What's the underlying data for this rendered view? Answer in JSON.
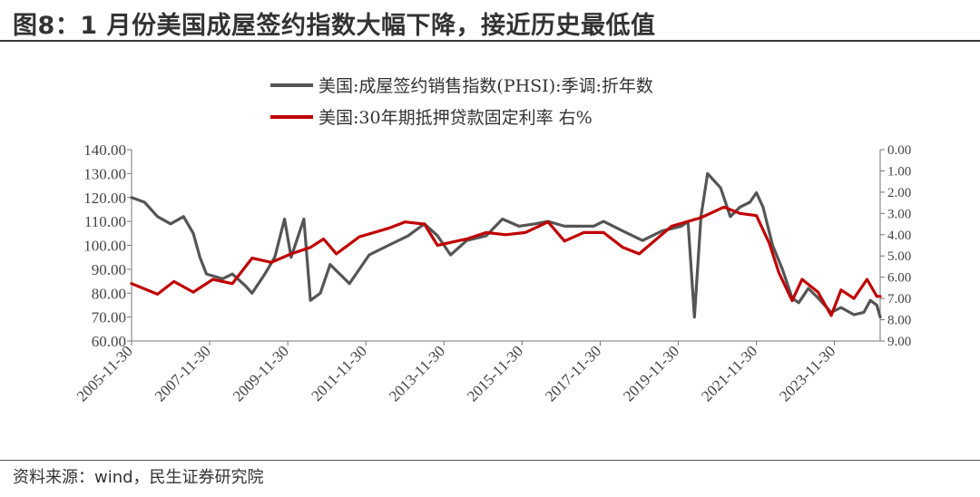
{
  "title": "图8：1 月份美国成屋签约指数大幅下降，接近历史最低值",
  "source": "资料来源：wind，民生证券研究院",
  "chart_data": {
    "type": "line",
    "legend_placement": "top-center",
    "grid": false,
    "x_axis": {
      "range": [
        "2005-11-30",
        "2025-01-31"
      ],
      "tick_labels": [
        "2005-11-30",
        "2007-11-30",
        "2009-11-30",
        "2011-11-30",
        "2013-11-30",
        "2015-11-30",
        "2017-11-30",
        "2019-11-30",
        "2021-11-30",
        "2023-11-30"
      ]
    },
    "y_left": {
      "min": 60,
      "max": 140,
      "tick_labels": [
        "60.00",
        "70.00",
        "80.00",
        "90.00",
        "100.00",
        "110.00",
        "120.00",
        "130.00",
        "140.00"
      ]
    },
    "y_right": {
      "min": 0,
      "max": 9,
      "inverted": true,
      "tick_labels": [
        "0.00",
        "1.00",
        "2.00",
        "3.00",
        "4.00",
        "5.00",
        "6.00",
        "7.00",
        "8.00",
        "9.00"
      ]
    },
    "series": [
      {
        "name": "美国:成屋签约销售指数(PHSI):季调:折年数",
        "axis": "left",
        "color": "#555555",
        "points": [
          [
            "2005-11-30",
            120
          ],
          [
            "2006-03-31",
            118
          ],
          [
            "2006-07-31",
            112
          ],
          [
            "2006-11-30",
            109
          ],
          [
            "2007-03-31",
            112
          ],
          [
            "2007-06-30",
            105
          ],
          [
            "2007-08-31",
            95
          ],
          [
            "2007-10-31",
            88
          ],
          [
            "2008-03-31",
            86
          ],
          [
            "2008-06-30",
            88
          ],
          [
            "2008-10-31",
            83
          ],
          [
            "2008-12-31",
            80
          ],
          [
            "2009-04-30",
            88
          ],
          [
            "2009-07-31",
            95
          ],
          [
            "2009-10-31",
            111
          ],
          [
            "2009-12-31",
            95
          ],
          [
            "2010-04-30",
            111
          ],
          [
            "2010-06-30",
            77
          ],
          [
            "2010-09-30",
            80
          ],
          [
            "2010-12-31",
            92
          ],
          [
            "2011-03-31",
            88
          ],
          [
            "2011-06-30",
            84
          ],
          [
            "2011-09-30",
            90
          ],
          [
            "2011-12-31",
            96
          ],
          [
            "2012-06-30",
            100
          ],
          [
            "2012-12-31",
            104
          ],
          [
            "2013-05-31",
            109
          ],
          [
            "2013-09-30",
            104
          ],
          [
            "2014-01-31",
            96
          ],
          [
            "2014-06-30",
            102
          ],
          [
            "2014-12-31",
            104
          ],
          [
            "2015-05-31",
            111
          ],
          [
            "2015-10-31",
            108
          ],
          [
            "2016-03-31",
            109
          ],
          [
            "2016-07-31",
            110
          ],
          [
            "2016-12-31",
            108
          ],
          [
            "2017-04-30",
            108
          ],
          [
            "2017-09-30",
            108
          ],
          [
            "2017-12-31",
            110
          ],
          [
            "2018-06-30",
            106
          ],
          [
            "2018-12-31",
            102
          ],
          [
            "2019-06-30",
            106
          ],
          [
            "2019-12-31",
            108
          ],
          [
            "2020-02-29",
            110
          ],
          [
            "2020-04-30",
            70
          ],
          [
            "2020-06-30",
            112
          ],
          [
            "2020-08-31",
            130
          ],
          [
            "2020-10-31",
            127
          ],
          [
            "2020-12-31",
            124
          ],
          [
            "2021-03-31",
            112
          ],
          [
            "2021-06-30",
            116
          ],
          [
            "2021-09-30",
            118
          ],
          [
            "2021-11-30",
            122
          ],
          [
            "2022-01-31",
            116
          ],
          [
            "2022-04-30",
            100
          ],
          [
            "2022-07-31",
            90
          ],
          [
            "2022-10-31",
            78
          ],
          [
            "2022-12-31",
            76
          ],
          [
            "2023-03-31",
            82
          ],
          [
            "2023-06-30",
            78
          ],
          [
            "2023-10-31",
            72
          ],
          [
            "2024-01-31",
            74
          ],
          [
            "2024-05-31",
            71
          ],
          [
            "2024-08-31",
            72
          ],
          [
            "2024-10-31",
            77
          ],
          [
            "2024-12-31",
            75
          ],
          [
            "2025-01-31",
            70
          ]
        ]
      },
      {
        "name": "美国:30年期抵押贷款固定利率 右%",
        "axis": "right",
        "color": "#c00000",
        "points": [
          [
            "2005-11-30",
            6.3
          ],
          [
            "2006-07-31",
            6.8
          ],
          [
            "2006-12-31",
            6.2
          ],
          [
            "2007-06-30",
            6.7
          ],
          [
            "2007-12-31",
            6.1
          ],
          [
            "2008-06-30",
            6.3
          ],
          [
            "2008-12-31",
            5.1
          ],
          [
            "2009-06-30",
            5.3
          ],
          [
            "2009-12-31",
            4.9
          ],
          [
            "2010-06-30",
            4.6
          ],
          [
            "2010-10-31",
            4.2
          ],
          [
            "2011-02-28",
            4.9
          ],
          [
            "2011-09-30",
            4.1
          ],
          [
            "2012-06-30",
            3.7
          ],
          [
            "2012-11-30",
            3.4
          ],
          [
            "2013-05-31",
            3.5
          ],
          [
            "2013-09-30",
            4.5
          ],
          [
            "2014-06-30",
            4.2
          ],
          [
            "2014-12-31",
            3.9
          ],
          [
            "2015-06-30",
            4.0
          ],
          [
            "2015-12-31",
            3.9
          ],
          [
            "2016-07-31",
            3.4
          ],
          [
            "2016-12-31",
            4.3
          ],
          [
            "2017-06-30",
            3.9
          ],
          [
            "2017-12-31",
            3.9
          ],
          [
            "2018-06-30",
            4.6
          ],
          [
            "2018-11-30",
            4.9
          ],
          [
            "2019-09-30",
            3.6
          ],
          [
            "2020-06-30",
            3.2
          ],
          [
            "2021-01-31",
            2.7
          ],
          [
            "2021-06-30",
            3.0
          ],
          [
            "2021-11-30",
            3.1
          ],
          [
            "2022-03-31",
            4.4
          ],
          [
            "2022-06-30",
            5.8
          ],
          [
            "2022-10-31",
            7.1
          ],
          [
            "2023-01-31",
            6.1
          ],
          [
            "2023-06-30",
            6.7
          ],
          [
            "2023-10-31",
            7.8
          ],
          [
            "2024-01-31",
            6.6
          ],
          [
            "2024-05-31",
            7.0
          ],
          [
            "2024-09-30",
            6.1
          ],
          [
            "2024-12-31",
            6.9
          ],
          [
            "2025-01-31",
            6.9
          ]
        ]
      }
    ]
  }
}
